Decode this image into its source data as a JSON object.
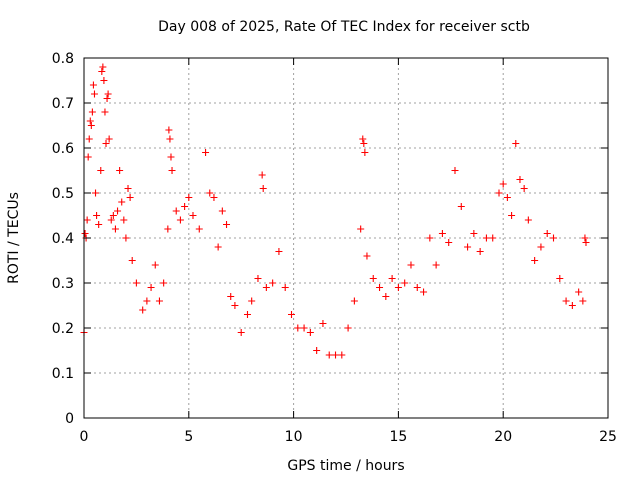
{
  "chart_data": {
    "type": "scatter",
    "title": "Day 008 of 2025, Rate Of TEC Index for receiver sctb",
    "xlabel": "GPS time / hours",
    "ylabel": "ROTI / TECUs",
    "xlim": [
      0,
      25
    ],
    "ylim": [
      0,
      0.8
    ],
    "x_ticks": [
      "0",
      "5",
      "10",
      "15",
      "20",
      "25"
    ],
    "y_ticks": [
      "0",
      "0.1",
      "0.2",
      "0.3",
      "0.4",
      "0.5",
      "0.6",
      "0.7",
      "0.8"
    ],
    "grid": true,
    "marker": "+",
    "colors": {
      "points": "#ff0000"
    },
    "series": [
      {
        "points": [
          [
            0.0,
            0.19
          ],
          [
            0.05,
            0.41
          ],
          [
            0.1,
            0.4
          ],
          [
            0.15,
            0.44
          ],
          [
            0.2,
            0.58
          ],
          [
            0.25,
            0.62
          ],
          [
            0.3,
            0.66
          ],
          [
            0.35,
            0.65
          ],
          [
            0.4,
            0.68
          ],
          [
            0.45,
            0.74
          ],
          [
            0.5,
            0.72
          ],
          [
            0.55,
            0.5
          ],
          [
            0.6,
            0.45
          ],
          [
            0.7,
            0.43
          ],
          [
            0.8,
            0.55
          ],
          [
            0.85,
            0.77
          ],
          [
            0.9,
            0.78
          ],
          [
            0.95,
            0.75
          ],
          [
            1.0,
            0.68
          ],
          [
            1.05,
            0.61
          ],
          [
            1.1,
            0.71
          ],
          [
            1.15,
            0.72
          ],
          [
            1.2,
            0.62
          ],
          [
            1.3,
            0.44
          ],
          [
            1.4,
            0.45
          ],
          [
            1.5,
            0.42
          ],
          [
            1.6,
            0.46
          ],
          [
            1.7,
            0.55
          ],
          [
            1.8,
            0.48
          ],
          [
            1.9,
            0.44
          ],
          [
            2.0,
            0.4
          ],
          [
            2.1,
            0.51
          ],
          [
            2.2,
            0.49
          ],
          [
            2.3,
            0.35
          ],
          [
            2.5,
            0.3
          ],
          [
            2.8,
            0.24
          ],
          [
            3.0,
            0.26
          ],
          [
            3.2,
            0.29
          ],
          [
            3.4,
            0.34
          ],
          [
            3.6,
            0.26
          ],
          [
            3.8,
            0.3
          ],
          [
            4.0,
            0.42
          ],
          [
            4.05,
            0.64
          ],
          [
            4.1,
            0.62
          ],
          [
            4.15,
            0.58
          ],
          [
            4.2,
            0.55
          ],
          [
            4.4,
            0.46
          ],
          [
            4.6,
            0.44
          ],
          [
            4.8,
            0.47
          ],
          [
            5.0,
            0.49
          ],
          [
            5.2,
            0.45
          ],
          [
            5.5,
            0.42
          ],
          [
            5.8,
            0.59
          ],
          [
            6.0,
            0.5
          ],
          [
            6.2,
            0.49
          ],
          [
            6.4,
            0.38
          ],
          [
            6.6,
            0.46
          ],
          [
            6.8,
            0.43
          ],
          [
            7.0,
            0.27
          ],
          [
            7.2,
            0.25
          ],
          [
            7.5,
            0.19
          ],
          [
            7.8,
            0.23
          ],
          [
            8.0,
            0.26
          ],
          [
            8.3,
            0.31
          ],
          [
            8.5,
            0.54
          ],
          [
            8.55,
            0.51
          ],
          [
            8.7,
            0.29
          ],
          [
            9.0,
            0.3
          ],
          [
            9.3,
            0.37
          ],
          [
            9.6,
            0.29
          ],
          [
            9.9,
            0.23
          ],
          [
            10.2,
            0.2
          ],
          [
            10.5,
            0.2
          ],
          [
            10.8,
            0.19
          ],
          [
            11.1,
            0.15
          ],
          [
            11.4,
            0.21
          ],
          [
            11.7,
            0.14
          ],
          [
            12.0,
            0.14
          ],
          [
            12.3,
            0.14
          ],
          [
            12.6,
            0.2
          ],
          [
            12.9,
            0.26
          ],
          [
            13.2,
            0.42
          ],
          [
            13.3,
            0.62
          ],
          [
            13.35,
            0.61
          ],
          [
            13.4,
            0.59
          ],
          [
            13.5,
            0.36
          ],
          [
            13.8,
            0.31
          ],
          [
            14.1,
            0.29
          ],
          [
            14.4,
            0.27
          ],
          [
            14.7,
            0.31
          ],
          [
            15.0,
            0.29
          ],
          [
            15.3,
            0.3
          ],
          [
            15.6,
            0.34
          ],
          [
            15.9,
            0.29
          ],
          [
            16.2,
            0.28
          ],
          [
            16.5,
            0.4
          ],
          [
            16.8,
            0.34
          ],
          [
            17.1,
            0.41
          ],
          [
            17.4,
            0.39
          ],
          [
            17.7,
            0.55
          ],
          [
            18.0,
            0.47
          ],
          [
            18.3,
            0.38
          ],
          [
            18.6,
            0.41
          ],
          [
            18.9,
            0.37
          ],
          [
            19.2,
            0.4
          ],
          [
            19.5,
            0.4
          ],
          [
            19.8,
            0.5
          ],
          [
            20.0,
            0.52
          ],
          [
            20.2,
            0.49
          ],
          [
            20.4,
            0.45
          ],
          [
            20.6,
            0.61
          ],
          [
            20.8,
            0.53
          ],
          [
            21.0,
            0.51
          ],
          [
            21.2,
            0.44
          ],
          [
            21.5,
            0.35
          ],
          [
            21.8,
            0.38
          ],
          [
            22.1,
            0.41
          ],
          [
            22.4,
            0.4
          ],
          [
            22.7,
            0.31
          ],
          [
            23.0,
            0.26
          ],
          [
            23.3,
            0.25
          ],
          [
            23.6,
            0.28
          ],
          [
            23.8,
            0.26
          ],
          [
            23.9,
            0.4
          ],
          [
            23.95,
            0.39
          ]
        ]
      }
    ]
  }
}
